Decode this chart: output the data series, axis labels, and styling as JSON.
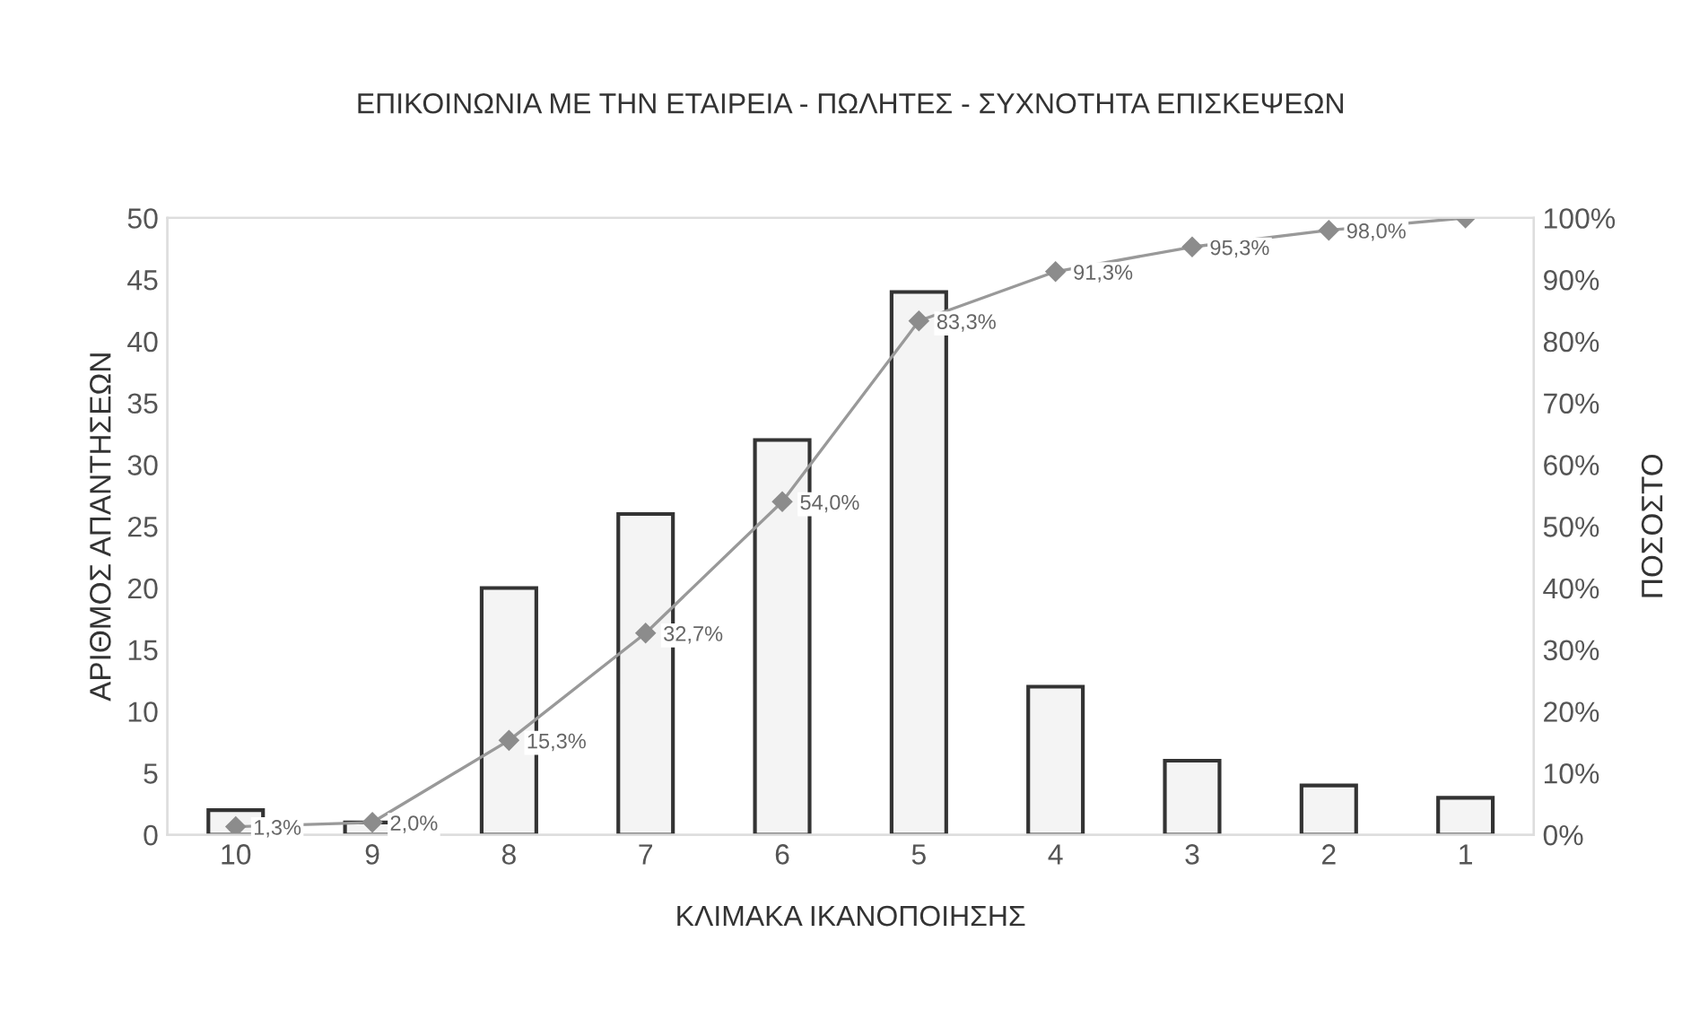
{
  "chart_data": {
    "type": "bar",
    "title": "ΕΠΙΚΟΙΝΩΝΙΑ ΜΕ ΤΗΝ ΕΤΑΙΡΕΙΑ - ΠΩΛΗΤΕΣ - ΣΥΧΝΟΤΗΤΑ ΕΠΙΣΚΕΨΕΩΝ",
    "xlabel": "ΚΛΙΜΑΚΑ ΙΚΑΝΟΠΟΙΗΣΗΣ",
    "ylabel": "ΑΡΙΘΜΟΣ ΑΠΑΝΤΗΣΕΩΝ",
    "y2label": "ΠΟΣΟΣΤΟ",
    "categories": [
      "10",
      "9",
      "8",
      "7",
      "6",
      "5",
      "4",
      "3",
      "2",
      "1"
    ],
    "series": [
      {
        "color": "#f4f4f4",
        "values": [
          2,
          1,
          20,
          26,
          32,
          44,
          12,
          6,
          4,
          3
        ]
      },
      {
        "type": "line",
        "axis": "y2",
        "color": "#999999",
        "marker": "diamond",
        "values": [
          1.3,
          2.0,
          15.3,
          32.7,
          54.0,
          83.3,
          91.3,
          95.3,
          98.0,
          100
        ],
        "value_labels": [
          "1,3%",
          "2,0%",
          "15,3%",
          "32,7%",
          "54,0%",
          "83,3%",
          "91,3%",
          "95,3%",
          "98,0%",
          null
        ]
      }
    ],
    "ylim": [
      0,
      50
    ],
    "yticks": [
      0,
      5,
      10,
      15,
      20,
      25,
      30,
      35,
      40,
      45,
      50
    ],
    "y2lim": [
      0,
      100
    ],
    "y2ticks": [
      {
        "value": 0,
        "label": "0%"
      },
      {
        "value": 10,
        "label": "10%"
      },
      {
        "value": 20,
        "label": "20%"
      },
      {
        "value": 30,
        "label": "30%"
      },
      {
        "value": 40,
        "label": "40%"
      },
      {
        "value": 50,
        "label": "50%"
      },
      {
        "value": 60,
        "label": "60%"
      },
      {
        "value": 70,
        "label": "70%"
      },
      {
        "value": 80,
        "label": "80%"
      },
      {
        "value": 90,
        "label": "90%"
      },
      {
        "value": 100,
        "label": "100%"
      }
    ],
    "grid": false,
    "legend": false
  }
}
